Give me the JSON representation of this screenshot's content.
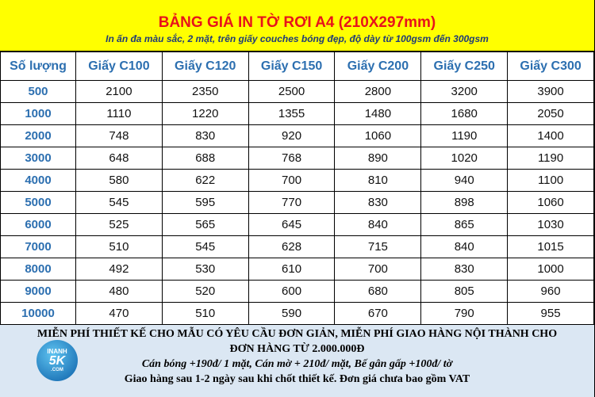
{
  "header": {
    "title": "BẢNG GIÁ IN TỜ RƠI A4 (210X297mm)",
    "subtitle": "In ấn đa màu sắc, 2 mặt, trên giấy couches bóng đẹp, độ dày từ 100gsm đến 300gsm"
  },
  "table": {
    "columns": [
      "Số lượng",
      "Giấy C100",
      "Giấy C120",
      "Giấy C150",
      "Giấy C200",
      "Giấy C250",
      "Giấy C300"
    ],
    "rows": [
      [
        "500",
        2100,
        2350,
        2500,
        2800,
        3200,
        3900
      ],
      [
        "1000",
        1110,
        1220,
        1355,
        1480,
        1680,
        2050
      ],
      [
        "2000",
        748,
        830,
        920,
        1060,
        1190,
        1400
      ],
      [
        "3000",
        648,
        688,
        768,
        890,
        1020,
        1190
      ],
      [
        "4000",
        580,
        622,
        700,
        810,
        940,
        1100
      ],
      [
        "5000",
        545,
        595,
        770,
        830,
        898,
        1060
      ],
      [
        "6000",
        525,
        565,
        645,
        840,
        865,
        1030
      ],
      [
        "7000",
        510,
        545,
        628,
        715,
        840,
        1015
      ],
      [
        "8000",
        492,
        530,
        610,
        700,
        830,
        1000
      ],
      [
        "9000",
        480,
        520,
        600,
        680,
        805,
        960
      ],
      [
        "10000",
        470,
        510,
        590,
        670,
        790,
        955
      ]
    ]
  },
  "footer": {
    "lines": [
      "MIỄN PHÍ THIẾT KẾ CHO MẪU CÓ YÊU CẦU ĐƠN GIẢN, MIỄN PHÍ GIAO HÀNG NỘI THÀNH CHO ĐƠN HÀNG TỪ 2.000.000Đ",
      "Cán bóng +190đ/ 1 mặt, Cán mờ + 210đ/ mặt, Bế gân gấp +100đ/ tờ",
      "Giao hàng sau 1-2 ngày sau khi chốt thiết kế. Đơn giá chưa bao gồm VAT"
    ],
    "logo": {
      "top": "INANH",
      "main": "5K",
      "suffix": ".COM"
    }
  }
}
